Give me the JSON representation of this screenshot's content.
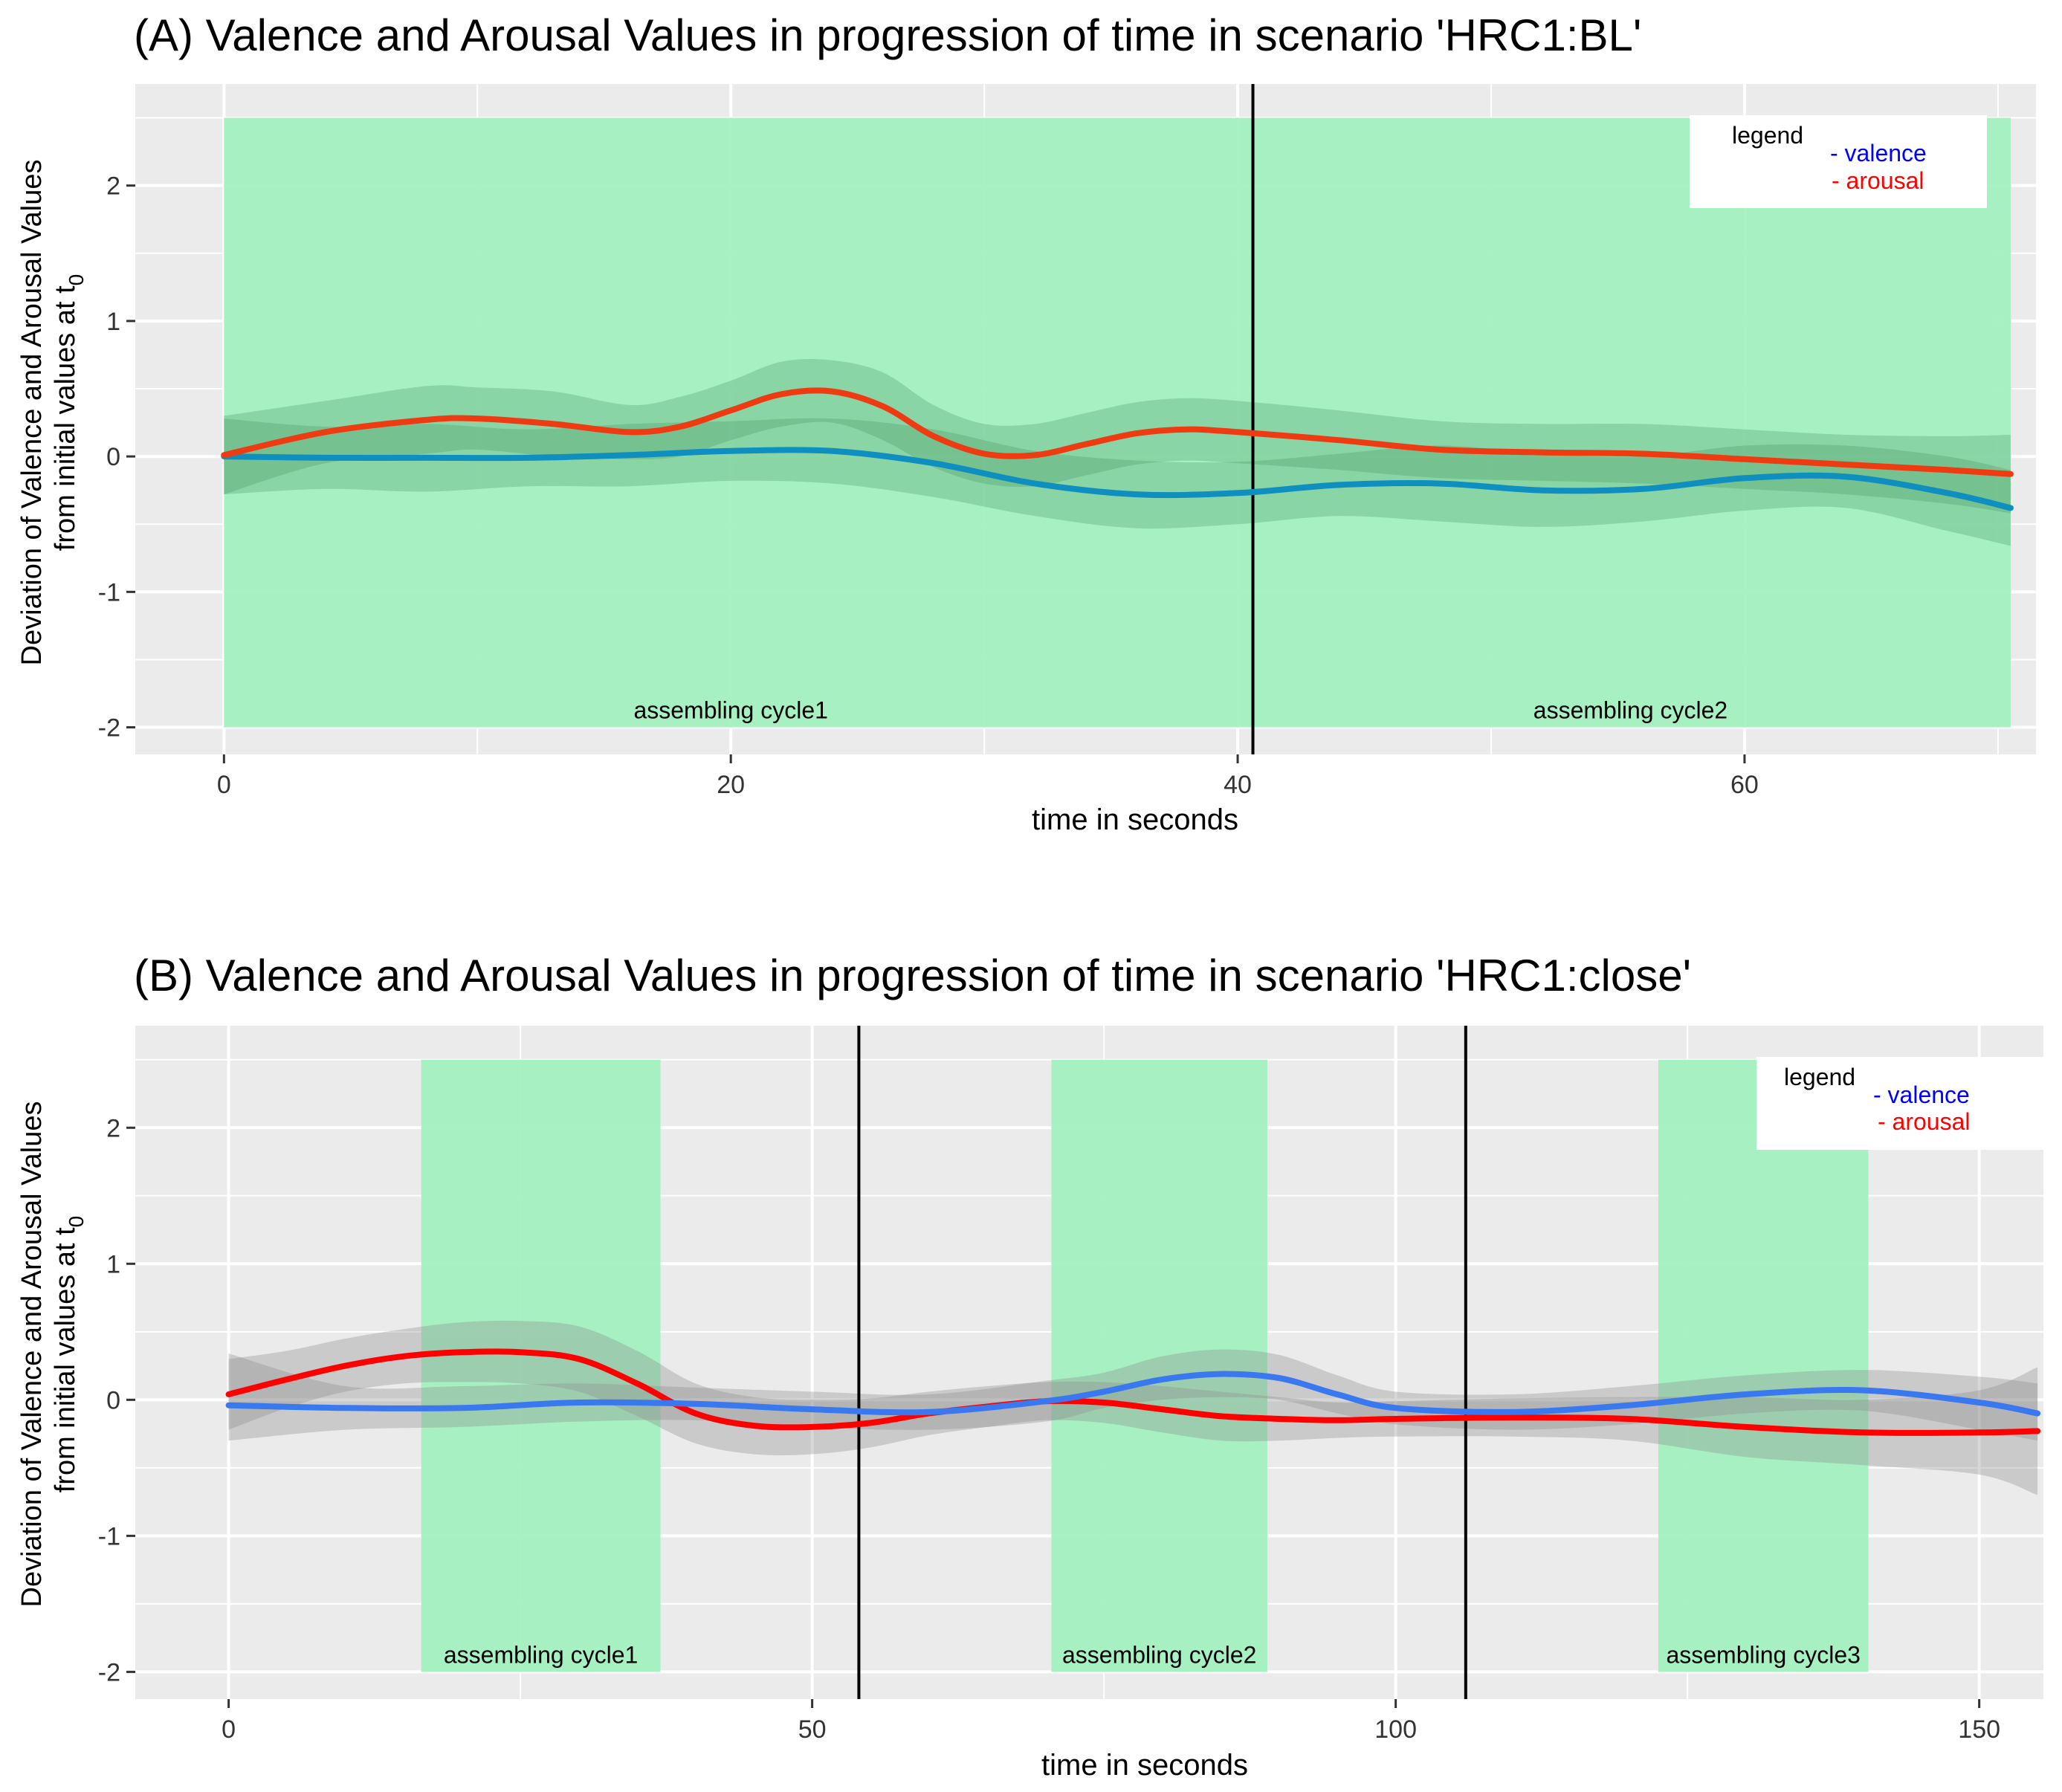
{
  "chart_data": [
    {
      "type": "line",
      "title": "(A) Valence and Arousal Values in progression of time in scenario 'HRC1:BL'",
      "xlabel": "time in seconds",
      "ylabel_line1": "Deviation of Valence and Arousal Values",
      "ylabel_line2": "from initial values at t",
      "ylabel_sub": "0",
      "xlim": [
        -3.5,
        71.5
      ],
      "ylim": [
        -2.2,
        2.75
      ],
      "x_ticks": [
        0,
        20,
        40,
        60
      ],
      "x_tick_labels": [
        "0",
        "20",
        "40",
        "60"
      ],
      "y_ticks": [
        2,
        1,
        0,
        -1,
        -2
      ],
      "y_tick_labels": [
        "2",
        "1",
        "0",
        "-1",
        "-2"
      ],
      "grid": true,
      "legend": {
        "title": "legend",
        "valence": "- valence",
        "arousal": "- arousal",
        "position": "top-right"
      },
      "colors": {
        "valence": "#0e8fc0",
        "arousal": "#ee3b12",
        "band": "#a3f0c0",
        "ribbon": "#3f8f5a",
        "panel": "#ebebeb"
      },
      "cycles": [
        {
          "label": "assembling cycle1",
          "x0": 0,
          "x1": 40.6
        },
        {
          "label": "assembling cycle2",
          "x0": 40.6,
          "x1": 70.5
        }
      ],
      "cycle_band_y": [
        -2,
        2.5
      ],
      "vlines": [
        40.6
      ],
      "series": [
        {
          "name": "arousal",
          "x": [
            0,
            4,
            8,
            10,
            13,
            16,
            18,
            20,
            22,
            24,
            26,
            28,
            30,
            32,
            34,
            36,
            38,
            40,
            44,
            48,
            52,
            56,
            60,
            64,
            68,
            70.5
          ],
          "y": [
            0.01,
            0.18,
            0.27,
            0.28,
            0.24,
            0.18,
            0.22,
            0.34,
            0.46,
            0.48,
            0.37,
            0.15,
            0.02,
            0.01,
            0.09,
            0.17,
            0.2,
            0.18,
            0.12,
            0.05,
            0.03,
            0.02,
            -0.02,
            -0.06,
            -0.1,
            -0.13
          ],
          "lower": [
            -0.28,
            -0.05,
            0.02,
            0.05,
            0.0,
            -0.02,
            0.0,
            0.12,
            0.22,
            0.25,
            0.12,
            -0.08,
            -0.2,
            -0.22,
            -0.14,
            -0.06,
            -0.03,
            -0.05,
            -0.1,
            -0.16,
            -0.18,
            -0.2,
            -0.24,
            -0.28,
            -0.35,
            -0.42
          ],
          "upper": [
            0.3,
            0.41,
            0.52,
            0.51,
            0.48,
            0.38,
            0.44,
            0.56,
            0.7,
            0.71,
            0.62,
            0.38,
            0.24,
            0.24,
            0.32,
            0.4,
            0.43,
            0.41,
            0.34,
            0.26,
            0.24,
            0.24,
            0.2,
            0.16,
            0.15,
            0.16
          ]
        },
        {
          "name": "valence",
          "x": [
            0,
            4,
            8,
            12,
            16,
            20,
            24,
            28,
            32,
            36,
            40,
            44,
            48,
            52,
            56,
            60,
            64,
            68,
            70.5
          ],
          "y": [
            0.0,
            -0.01,
            -0.01,
            -0.01,
            0.01,
            0.04,
            0.04,
            -0.05,
            -0.2,
            -0.28,
            -0.27,
            -0.21,
            -0.2,
            -0.25,
            -0.24,
            -0.16,
            -0.15,
            -0.27,
            -0.38
          ],
          "lower": [
            -0.28,
            -0.24,
            -0.26,
            -0.22,
            -0.22,
            -0.18,
            -0.2,
            -0.3,
            -0.44,
            -0.53,
            -0.5,
            -0.44,
            -0.48,
            -0.52,
            -0.48,
            -0.4,
            -0.38,
            -0.55,
            -0.66
          ],
          "upper": [
            0.28,
            0.22,
            0.24,
            0.2,
            0.24,
            0.26,
            0.28,
            0.2,
            0.04,
            -0.03,
            -0.04,
            0.02,
            0.08,
            0.02,
            0.0,
            0.08,
            0.08,
            0.0,
            -0.1
          ]
        }
      ]
    },
    {
      "type": "line",
      "title": "(B) Valence and Arousal Values in progression of time in scenario 'HRC1:close'",
      "xlabel": "time in seconds",
      "ylabel_line1": "Deviation of Valence and Arousal Values",
      "ylabel_line2": "from initial values at t",
      "ylabel_sub": "0",
      "xlim": [
        -8,
        155.5
      ],
      "ylim": [
        -2.2,
        2.75
      ],
      "x_ticks": [
        0,
        50,
        100,
        150
      ],
      "x_tick_labels": [
        "0",
        "50",
        "100",
        "150"
      ],
      "y_ticks": [
        2,
        1,
        0,
        -1,
        -2
      ],
      "y_tick_labels": [
        "2",
        "1",
        "0",
        "-1",
        "-2"
      ],
      "grid": true,
      "legend": {
        "title": "legend",
        "valence": "- valence",
        "arousal": "- arousal",
        "position": "top-right"
      },
      "colors": {
        "valence": "#3a78f0",
        "arousal": "#ff0000",
        "band": "#a3f0c0",
        "ribbon": "#8c8c8c",
        "panel": "#ebebeb"
      },
      "cycles": [
        {
          "label": "assembling cycle1",
          "x0": 16.5,
          "x1": 37
        },
        {
          "label": "assembling cycle2",
          "x0": 70.5,
          "x1": 89
        },
        {
          "label": "assembling cycle3",
          "x0": 122.5,
          "x1": 140.5
        }
      ],
      "cycle_band_y": [
        -2,
        2.5
      ],
      "vlines": [
        54,
        106
      ],
      "series": [
        {
          "name": "arousal",
          "x": [
            0,
            5,
            10,
            15,
            20,
            25,
            30,
            35,
            40,
            45,
            50,
            55,
            60,
            65,
            70,
            75,
            80,
            85,
            90,
            95,
            100,
            110,
            120,
            130,
            140,
            150,
            155
          ],
          "y": [
            0.04,
            0.15,
            0.25,
            0.32,
            0.35,
            0.35,
            0.3,
            0.12,
            -0.1,
            -0.19,
            -0.2,
            -0.17,
            -0.1,
            -0.05,
            -0.01,
            -0.02,
            -0.07,
            -0.12,
            -0.14,
            -0.15,
            -0.14,
            -0.13,
            -0.14,
            -0.2,
            -0.24,
            -0.24,
            -0.23
          ],
          "lower": [
            -0.22,
            -0.06,
            0.06,
            0.12,
            0.13,
            0.12,
            0.06,
            -0.12,
            -0.32,
            -0.4,
            -0.4,
            -0.35,
            -0.26,
            -0.2,
            -0.15,
            -0.17,
            -0.24,
            -0.3,
            -0.3,
            -0.28,
            -0.27,
            -0.27,
            -0.3,
            -0.42,
            -0.48,
            -0.55,
            -0.7
          ],
          "upper": [
            0.3,
            0.36,
            0.45,
            0.52,
            0.57,
            0.58,
            0.54,
            0.36,
            0.12,
            0.02,
            0.0,
            0.01,
            0.06,
            0.1,
            0.13,
            0.13,
            0.1,
            0.06,
            0.02,
            -0.02,
            -0.01,
            0.01,
            0.02,
            0.02,
            0.0,
            0.07,
            0.24
          ]
        },
        {
          "name": "valence",
          "x": [
            0,
            10,
            20,
            30,
            40,
            50,
            60,
            70,
            75,
            80,
            85,
            90,
            95,
            100,
            110,
            120,
            130,
            140,
            150,
            155
          ],
          "y": [
            -0.04,
            -0.06,
            -0.06,
            -0.02,
            -0.03,
            -0.07,
            -0.09,
            -0.01,
            0.06,
            0.15,
            0.19,
            0.16,
            0.04,
            -0.06,
            -0.09,
            -0.04,
            0.04,
            0.07,
            -0.02,
            -0.1
          ],
          "lower": [
            -0.3,
            -0.22,
            -0.2,
            -0.16,
            -0.15,
            -0.2,
            -0.22,
            -0.16,
            -0.06,
            0.0,
            0.02,
            0.0,
            -0.1,
            -0.18,
            -0.22,
            -0.18,
            -0.1,
            -0.08,
            -0.22,
            -0.3
          ],
          "upper": [
            0.34,
            0.1,
            0.1,
            0.12,
            0.09,
            0.06,
            0.04,
            0.14,
            0.2,
            0.32,
            0.37,
            0.33,
            0.18,
            0.06,
            0.04,
            0.1,
            0.18,
            0.22,
            0.17,
            0.12
          ]
        }
      ]
    }
  ]
}
